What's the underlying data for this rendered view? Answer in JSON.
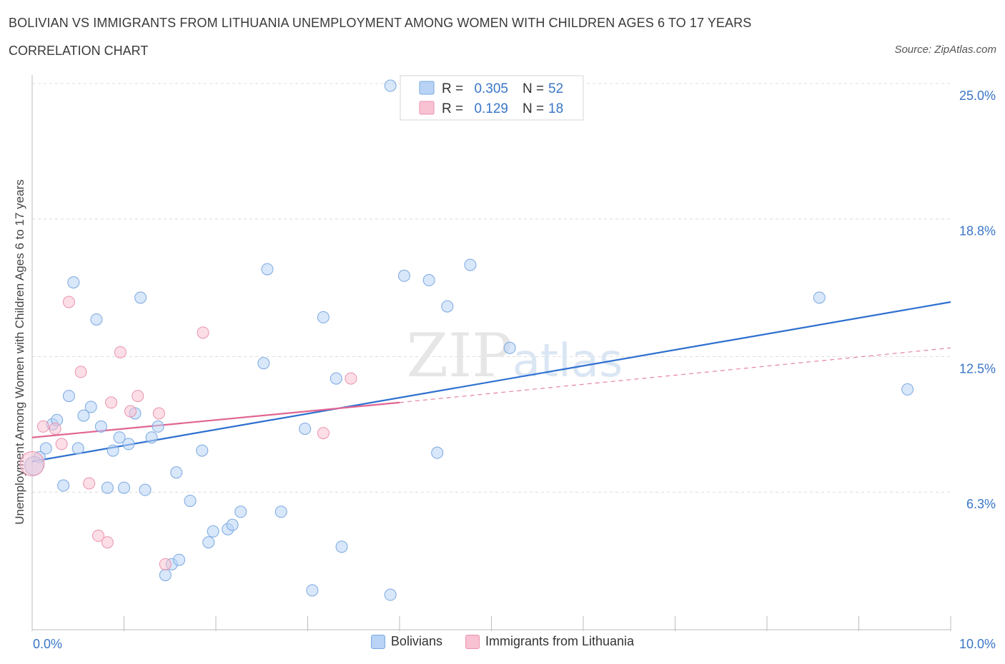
{
  "chart_data": {
    "type": "scatter",
    "title": "BOLIVIAN VS IMMIGRANTS FROM LITHUANIA UNEMPLOYMENT AMONG WOMEN WITH CHILDREN AGES 6 TO 17 YEARS",
    "subtitle": "CORRELATION CHART",
    "source": "Source: ZipAtlas.com",
    "ylabel": "Unemployment Among Women with Children Ages 6 to 17 years",
    "xlim": [
      0,
      10
    ],
    "ylim": [
      0,
      25
    ],
    "x_tick_labels": [
      "0.0%",
      "10.0%"
    ],
    "y_ticks": [
      6.3,
      12.5,
      18.8,
      25.0
    ],
    "y_tick_labels": [
      "6.3%",
      "12.5%",
      "18.8%",
      "25.0%"
    ],
    "watermark": "ZIPatlas",
    "colors": {
      "bolivians_fill": "#b8d3f5",
      "bolivians_stroke": "#7aa8e0",
      "bolivians_line": "#2d6fd0",
      "lithuania_fill": "#f8c2d2",
      "lithuania_stroke": "#ea92ae",
      "lithuania_line": "#e06592",
      "value_text": "#3a76c8"
    },
    "legend": [
      {
        "r_label": "R =",
        "r": "0.305",
        "n_label": "N =",
        "n": "52"
      },
      {
        "r_label": "R =",
        "r": "0.129",
        "n_label": "N =",
        "n": "18"
      }
    ],
    "series": [
      {
        "name": "Bolivians",
        "trend": {
          "x": [
            0,
            10
          ],
          "y": [
            7.7,
            15.0
          ]
        },
        "points": [
          [
            3.9,
            24.9
          ],
          [
            0.08,
            7.9
          ],
          [
            0.15,
            8.3
          ],
          [
            0.22,
            9.4
          ],
          [
            0.27,
            9.6
          ],
          [
            0.34,
            6.6
          ],
          [
            0.4,
            10.7
          ],
          [
            0.45,
            15.9
          ],
          [
            0.5,
            8.3
          ],
          [
            0.56,
            9.8
          ],
          [
            0.64,
            10.2
          ],
          [
            0.7,
            14.2
          ],
          [
            0.75,
            9.3
          ],
          [
            0.82,
            6.5
          ],
          [
            0.88,
            8.2
          ],
          [
            0.95,
            8.8
          ],
          [
            1.0,
            6.5
          ],
          [
            1.05,
            8.5
          ],
          [
            1.12,
            9.9
          ],
          [
            1.18,
            15.2
          ],
          [
            1.23,
            6.4
          ],
          [
            1.3,
            8.8
          ],
          [
            1.37,
            9.3
          ],
          [
            1.45,
            2.5
          ],
          [
            1.52,
            3.0
          ],
          [
            1.57,
            7.2
          ],
          [
            1.6,
            3.2
          ],
          [
            1.72,
            5.9
          ],
          [
            1.85,
            8.2
          ],
          [
            1.92,
            4.0
          ],
          [
            1.97,
            4.5
          ],
          [
            2.13,
            4.6
          ],
          [
            2.18,
            4.8
          ],
          [
            2.27,
            5.4
          ],
          [
            2.52,
            12.2
          ],
          [
            2.56,
            16.5
          ],
          [
            2.71,
            5.4
          ],
          [
            2.97,
            9.2
          ],
          [
            3.05,
            1.8
          ],
          [
            3.17,
            14.3
          ],
          [
            3.31,
            11.5
          ],
          [
            3.37,
            3.8
          ],
          [
            3.9,
            1.6
          ],
          [
            4.05,
            16.2
          ],
          [
            4.32,
            16.0
          ],
          [
            4.41,
            8.1
          ],
          [
            4.52,
            14.8
          ],
          [
            4.77,
            16.7
          ],
          [
            5.2,
            12.9
          ],
          [
            8.57,
            15.2
          ],
          [
            9.53,
            11.0
          ],
          [
            0.02,
            7.5
          ]
        ]
      },
      {
        "name": "Immigrants from Lithuania",
        "trend": {
          "x": [
            0,
            4.0
          ],
          "y": [
            8.8,
            10.4
          ]
        },
        "trend_ext": {
          "x": [
            4.0,
            10
          ],
          "y": [
            10.4,
            12.9
          ]
        },
        "points": [
          [
            0.12,
            9.3
          ],
          [
            0.25,
            9.2
          ],
          [
            0.32,
            8.5
          ],
          [
            0.4,
            15.0
          ],
          [
            0.53,
            11.8
          ],
          [
            0.62,
            6.7
          ],
          [
            0.72,
            4.3
          ],
          [
            0.82,
            4.0
          ],
          [
            0.86,
            10.4
          ],
          [
            0.96,
            12.7
          ],
          [
            1.07,
            10.0
          ],
          [
            1.15,
            10.7
          ],
          [
            1.38,
            9.9
          ],
          [
            1.45,
            3.0
          ],
          [
            1.86,
            13.6
          ],
          [
            3.47,
            11.5
          ],
          [
            3.17,
            9.0
          ],
          [
            0.0,
            7.6
          ]
        ]
      }
    ]
  },
  "bottom_legend": [
    {
      "label": "Bolivians"
    },
    {
      "label": "Immigrants from Lithuania"
    }
  ]
}
